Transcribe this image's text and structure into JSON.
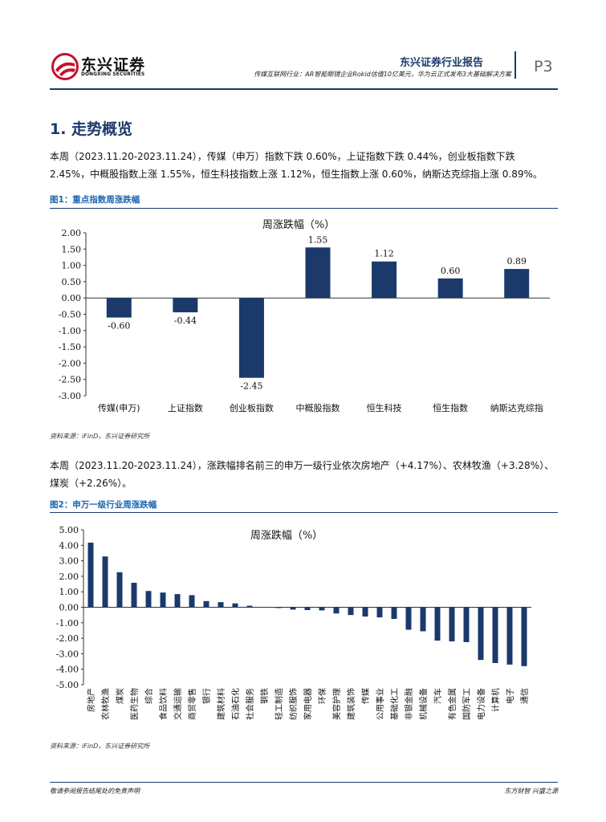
{
  "header": {
    "brand_cn": "东兴证券",
    "brand_en": "DONGXING SECURITIES",
    "report_type": "东兴证券行业报告",
    "subtitle": "传媒互联网行业：AR智能眼镜企业Rokid估值10亿美元，华为云正式发布3大基础解决方案",
    "page_number": "P3",
    "brand_color": "#1b3a6b",
    "logo_color": "#c8102e"
  },
  "section": {
    "title": "1. 走势概览",
    "paragraph1": "本周（2023.11.20-2023.11.24），传媒（申万）指数下跌 0.60%，上证指数下跌 0.44%，创业板指数下跌 2.45%，中概股指数上涨 1.55%，恒生科技指数上涨 1.12%，恒生指数上涨 0.60%，纳斯达克综指上涨 0.89%。",
    "paragraph2": "本周（2023.11.20-2023.11.24），涨跌幅排名前三的申万一级行业依次房地产（+4.17%）、农林牧渔（+3.28%）、煤炭（+2.26%）。"
  },
  "figures": {
    "fig1_title": "图1：重点指数周涨跌幅",
    "fig1_source": "资料来源：iFinD，东兴证券研究所",
    "fig2_title": "图2：申万一级行业周涨跌幅",
    "fig2_source": "资料来源：iFinD，东兴证券研究所"
  },
  "footer": {
    "disclaimer": "敬请参阅报告结尾处的免责声明",
    "motto": "东方财智 兴盛之源"
  },
  "chart_data": [
    {
      "type": "bar",
      "title": "周涨跌幅（%）",
      "categories": [
        "传媒(申万)",
        "上证指数",
        "创业板指数",
        "中概股指数",
        "恒生科技",
        "恒生指数",
        "纳斯达克综指"
      ],
      "values": [
        -0.6,
        -0.44,
        -2.45,
        1.55,
        1.12,
        0.6,
        0.89
      ],
      "data_labels": [
        "-0.60",
        "-0.44",
        "-2.45",
        "1.55",
        "1.12",
        "0.60",
        "0.89"
      ],
      "ylim": [
        -3.0,
        2.0
      ],
      "yticks": [
        "2.00",
        "1.50",
        "1.00",
        "0.50",
        "0.00",
        "-0.50",
        "-1.00",
        "-1.50",
        "-2.00",
        "-2.50",
        "-3.00"
      ],
      "bar_color": "#1b3a6b",
      "grid": false,
      "legend": "none"
    },
    {
      "type": "bar",
      "title": "周涨跌幅（%）",
      "categories": [
        "房地产",
        "农林牧渔",
        "煤炭",
        "医药生物",
        "综合",
        "食品饮料",
        "交通运输",
        "商贸零售",
        "银行",
        "建筑材料",
        "石油石化",
        "社会服务",
        "钢铁",
        "轻工制造",
        "纺织服饰",
        "家用电器",
        "环保",
        "美容护理",
        "建筑装饰",
        "传媒",
        "公用事业",
        "基础化工",
        "非银金融",
        "机械设备",
        "汽车",
        "有色金属",
        "国防军工",
        "电力设备",
        "计算机",
        "电子",
        "通信"
      ],
      "values": [
        4.17,
        3.28,
        2.26,
        1.58,
        1.05,
        0.95,
        0.85,
        0.78,
        0.4,
        0.33,
        0.25,
        0.1,
        0.03,
        -0.05,
        -0.15,
        -0.18,
        -0.2,
        -0.4,
        -0.5,
        -0.6,
        -0.65,
        -0.75,
        -1.45,
        -1.55,
        -2.15,
        -2.2,
        -2.25,
        -3.4,
        -3.6,
        -3.7,
        -3.8
      ],
      "ylim": [
        -5.0,
        5.0
      ],
      "yticks": [
        "5.00",
        "4.00",
        "3.00",
        "2.00",
        "1.00",
        "0.00",
        "-1.00",
        "-2.00",
        "-3.00",
        "-4.00",
        "-5.00"
      ],
      "bar_color": "#1b3a6b",
      "grid": false,
      "legend": "none"
    }
  ]
}
